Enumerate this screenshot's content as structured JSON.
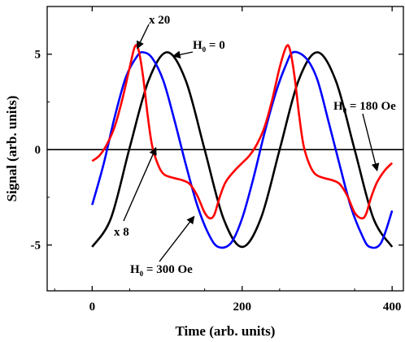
{
  "chart_data": {
    "type": "line",
    "xlabel": "Time (arb. units)",
    "ylabel": "Signal (arb. units)",
    "xlim": [
      -60,
      415
    ],
    "ylim": [
      -7.4,
      7.5
    ],
    "xticks": [
      0,
      200,
      400
    ],
    "xtick_labels": [
      "0",
      "200",
      "400"
    ],
    "yticks": [
      -5,
      0,
      5
    ],
    "ytick_labels": [
      "-5",
      "0",
      "5"
    ],
    "zero_line": 0,
    "grid": false,
    "legend": "none",
    "series": [
      {
        "color": "#000000",
        "points": [
          [
            0,
            -5.1
          ],
          [
            25,
            -3.6
          ],
          [
            50,
            0.1
          ],
          [
            75,
            3.6
          ],
          [
            100,
            5.1
          ],
          [
            125,
            3.6
          ],
          [
            150,
            0
          ],
          [
            175,
            -3.6
          ],
          [
            200,
            -5.1
          ],
          [
            225,
            -3.6
          ],
          [
            250,
            0
          ],
          [
            275,
            3.6
          ],
          [
            300,
            5.1
          ],
          [
            325,
            3.6
          ],
          [
            350,
            0
          ],
          [
            375,
            -3.6
          ],
          [
            400,
            -5.1
          ]
        ]
      },
      {
        "color": "#0000ff",
        "points": [
          [
            0,
            -2.9
          ],
          [
            15,
            -0.8
          ],
          [
            30,
            1.7
          ],
          [
            45,
            3.8
          ],
          [
            60,
            4.9
          ],
          [
            68,
            5.1
          ],
          [
            80,
            4.8
          ],
          [
            95,
            3.6
          ],
          [
            110,
            1.5
          ],
          [
            125,
            -0.8
          ],
          [
            140,
            -2.9
          ],
          [
            155,
            -4.4
          ],
          [
            168,
            -5.1
          ],
          [
            185,
            -4.9
          ],
          [
            200,
            -3.6
          ],
          [
            215,
            -1.5
          ],
          [
            230,
            0.9
          ],
          [
            245,
            3.0
          ],
          [
            258,
            4.4
          ],
          [
            268,
            5.1
          ],
          [
            285,
            4.8
          ],
          [
            300,
            3.7
          ],
          [
            315,
            1.5
          ],
          [
            330,
            -0.8
          ],
          [
            345,
            -3.0
          ],
          [
            360,
            -4.5
          ],
          [
            370,
            -5.1
          ],
          [
            385,
            -4.9
          ],
          [
            400,
            -3.2
          ]
        ]
      },
      {
        "color": "#ff0000",
        "points": [
          [
            0,
            -0.6
          ],
          [
            10,
            -0.3
          ],
          [
            20,
            0.3
          ],
          [
            30,
            1.2
          ],
          [
            40,
            2.6
          ],
          [
            50,
            4.3
          ],
          [
            57,
            5.4
          ],
          [
            62,
            5.2
          ],
          [
            68,
            3.8
          ],
          [
            74,
            1.8
          ],
          [
            80,
            0.2
          ],
          [
            88,
            -0.8
          ],
          [
            96,
            -1.3
          ],
          [
            110,
            -1.5
          ],
          [
            120,
            -1.6
          ],
          [
            130,
            -1.8
          ],
          [
            140,
            -2.4
          ],
          [
            150,
            -3.3
          ],
          [
            157,
            -3.6
          ],
          [
            163,
            -3.4
          ],
          [
            170,
            -2.5
          ],
          [
            178,
            -1.7
          ],
          [
            190,
            -1.1
          ],
          [
            200,
            -0.7
          ],
          [
            210,
            -0.3
          ],
          [
            220,
            0.3
          ],
          [
            230,
            1.2
          ],
          [
            240,
            2.6
          ],
          [
            250,
            4.3
          ],
          [
            259,
            5.4
          ],
          [
            264,
            5.2
          ],
          [
            270,
            3.8
          ],
          [
            276,
            1.8
          ],
          [
            282,
            0.2
          ],
          [
            290,
            -0.8
          ],
          [
            298,
            -1.3
          ],
          [
            310,
            -1.5
          ],
          [
            320,
            -1.6
          ],
          [
            330,
            -1.8
          ],
          [
            340,
            -2.4
          ],
          [
            350,
            -3.3
          ],
          [
            359,
            -3.6
          ],
          [
            365,
            -3.4
          ],
          [
            372,
            -2.5
          ],
          [
            380,
            -1.7
          ],
          [
            390,
            -1.1
          ],
          [
            400,
            -0.7
          ]
        ]
      }
    ],
    "annotations": [
      {
        "label": "x 20",
        "target": [
          60,
          5.3
        ]
      },
      {
        "label": "H",
        "sub": "0",
        "suffix": " = 0",
        "target": [
          108,
          4.9
        ]
      },
      {
        "label": "H",
        "sub": "0",
        "suffix": " = 180 Oe",
        "target": [
          380,
          -1.1
        ]
      },
      {
        "label": "x 8",
        "target": [
          85,
          0.1
        ]
      },
      {
        "label": "H",
        "sub": "0",
        "suffix": " = 300 Oe",
        "target": [
          136,
          -3.5
        ]
      }
    ]
  }
}
